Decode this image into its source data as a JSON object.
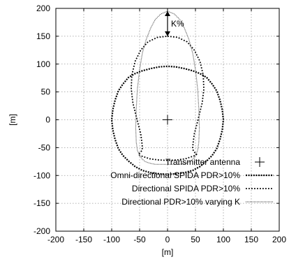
{
  "chart_data": {
    "type": "line",
    "title": "",
    "xlabel": "[m]",
    "ylabel": "[m]",
    "xlim": [
      -200,
      200
    ],
    "ylim": [
      -200,
      200
    ],
    "xticks": [
      -200,
      -150,
      -100,
      -50,
      0,
      50,
      100,
      150,
      200
    ],
    "yticks": [
      -200,
      -150,
      -100,
      -50,
      0,
      50,
      100,
      150,
      200
    ],
    "grid": true,
    "legend_position": "bottom-right",
    "annotations": {
      "k_label": "K%",
      "k_arrow_from": [
        0,
        150
      ],
      "k_arrow_to": [
        0,
        195
      ]
    },
    "series": [
      {
        "name": "Transmitter antenna",
        "type": "point",
        "marker": "plus",
        "x": [
          0
        ],
        "y": [
          0
        ]
      },
      {
        "name": "Omni-directional SPIDA PDR>10%",
        "type": "line",
        "style": "dense-dotted",
        "x": [
          100,
          98,
          94,
          88,
          80,
          70,
          58,
          45,
          30,
          15,
          0,
          -15,
          -30,
          -45,
          -58,
          -70,
          -80,
          -88,
          -94,
          -98,
          -100,
          -98,
          -94,
          -88,
          -80,
          -70,
          -58,
          -45,
          -30,
          -15,
          0,
          15,
          30,
          45,
          58,
          70,
          80,
          88,
          94,
          98,
          100
        ],
        "y": [
          0,
          18,
          35,
          52,
          64,
          76,
          83,
          88,
          92,
          95,
          96,
          95,
          92,
          88,
          83,
          76,
          64,
          52,
          35,
          18,
          0,
          -18,
          -35,
          -52,
          -64,
          -74,
          -84,
          -91,
          -95,
          -97,
          -98,
          -97,
          -95,
          -91,
          -84,
          -74,
          -64,
          -52,
          -35,
          -18,
          0
        ]
      },
      {
        "name": "Directional SPIDA PDR>10%",
        "type": "line",
        "style": "sparse-dotted",
        "x": [
          0,
          18,
          35,
          48,
          58,
          64,
          65,
          62,
          57,
          52,
          48,
          46,
          45,
          46,
          48,
          50,
          52,
          50,
          44,
          32,
          18,
          0,
          -18,
          -32,
          -44,
          -50,
          -52,
          -50,
          -48,
          -46,
          -45,
          -46,
          -48,
          -52,
          -57,
          -62,
          -65,
          -64,
          -58,
          -48,
          -35,
          -18,
          0
        ],
        "y": [
          150,
          148,
          140,
          125,
          105,
          80,
          55,
          30,
          10,
          -10,
          -25,
          -40,
          -50,
          -55,
          -58,
          -60,
          -62,
          -64,
          -66,
          -70,
          -72,
          -73,
          -72,
          -70,
          -66,
          -64,
          -62,
          -60,
          -58,
          -55,
          -50,
          -40,
          -25,
          -10,
          10,
          30,
          55,
          80,
          105,
          125,
          140,
          148,
          150
        ]
      },
      {
        "name": "Directional PDR>10% varying K",
        "type": "line",
        "style": "thin-dense",
        "x": [
          0,
          12,
          22,
          30,
          38,
          45,
          50,
          54,
          56,
          57,
          56,
          54,
          50,
          46,
          40,
          32,
          22,
          12,
          0,
          -12,
          -22,
          -32,
          -40,
          -46,
          -50,
          -54,
          -56,
          -57,
          -56,
          -54,
          -50,
          -45,
          -38,
          -30,
          -22,
          -12,
          0
        ],
        "y": [
          195,
          190,
          180,
          165,
          145,
          120,
          90,
          55,
          20,
          -15,
          -40,
          -55,
          -64,
          -70,
          -75,
          -78,
          -80,
          -80,
          -80,
          -80,
          -80,
          -78,
          -75,
          -70,
          -64,
          -55,
          -40,
          -15,
          20,
          55,
          90,
          120,
          145,
          165,
          180,
          190,
          195
        ]
      }
    ]
  }
}
